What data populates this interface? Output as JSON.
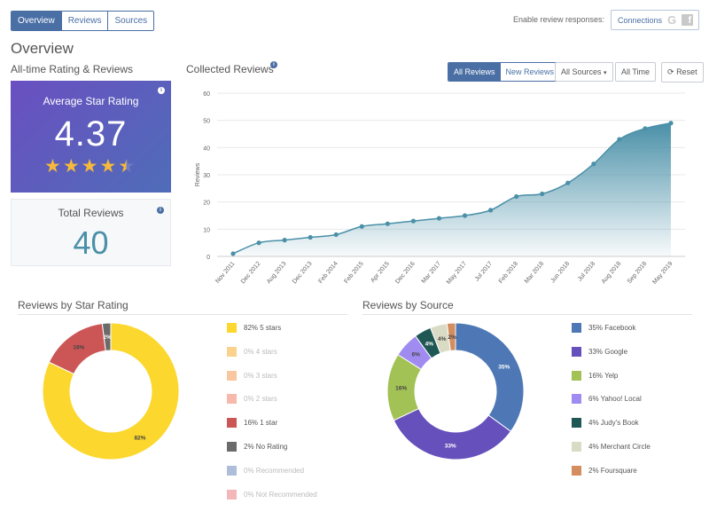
{
  "tabs": [
    {
      "label": "Overview",
      "active": true
    },
    {
      "label": "Reviews",
      "active": false
    },
    {
      "label": "Sources",
      "active": false
    }
  ],
  "connections": {
    "enable_label": "Enable review responses:",
    "button_label": "Connections",
    "google_glyph": "G",
    "facebook_glyph": "f"
  },
  "page_title": "Overview",
  "alltime_title": "All-time Rating & Reviews",
  "average": {
    "title": "Average Star Rating",
    "value": "4.37",
    "stars_full": 4,
    "star_partial": 0.37
  },
  "total": {
    "title": "Total Reviews",
    "value": "40"
  },
  "info_glyph": "i",
  "collected": {
    "title": "Collected Reviews",
    "filters": {
      "all_reviews": "All Reviews",
      "new_reviews": "New Reviews",
      "all_sources": "All Sources",
      "all_time": "All Time",
      "reset": "Reset"
    }
  },
  "chart_data": [
    {
      "type": "area",
      "title": "Collected Reviews",
      "ylabel": "Reviews",
      "ylim": [
        0,
        60
      ],
      "yticks": [
        0,
        10,
        20,
        30,
        40,
        50,
        60
      ],
      "x": [
        "Nov 2011",
        "Dec 2012",
        "Aug 2013",
        "Dec 2013",
        "Feb 2014",
        "Feb 2015",
        "Apr 2015",
        "Dec 2016",
        "Mar 2017",
        "May 2017",
        "Jul 2017",
        "Feb 2018",
        "Mar 2018",
        "Jun 2018",
        "Jul 2018",
        "Aug 2018",
        "Sep 2018",
        "May 2019"
      ],
      "values": [
        1,
        5,
        6,
        7,
        8,
        11,
        12,
        13,
        14,
        15,
        17,
        22,
        23,
        27,
        34,
        43,
        47,
        49
      ],
      "color": "#4a90a8",
      "grid": true
    },
    {
      "type": "pie",
      "title": "Reviews by Star Rating",
      "slices": [
        {
          "label": "5 stars",
          "pct": 82,
          "color": "#fcd72d"
        },
        {
          "label": "4 stars",
          "pct": 0,
          "color": "#fbd18e"
        },
        {
          "label": "3 stars",
          "pct": 0,
          "color": "#f8c7a0"
        },
        {
          "label": "2 stars",
          "pct": 0,
          "color": "#f6b9ab"
        },
        {
          "label": "1 star",
          "pct": 16,
          "color": "#cc5555"
        },
        {
          "label": "No Rating",
          "pct": 2,
          "color": "#6b6b6b"
        },
        {
          "label": "Recommended",
          "pct": 0,
          "color": "#aebdda"
        },
        {
          "label": "Not Recommended",
          "pct": 0,
          "color": "#f4b7b9"
        }
      ]
    },
    {
      "type": "pie",
      "title": "Reviews by Source",
      "slices": [
        {
          "label": "Facebook",
          "pct": 35,
          "color": "#4e78b5"
        },
        {
          "label": "Google",
          "pct": 33,
          "color": "#6650bb"
        },
        {
          "label": "Yelp",
          "pct": 16,
          "color": "#a2c256"
        },
        {
          "label": "Yahoo! Local",
          "pct": 6,
          "color": "#a08cf0"
        },
        {
          "label": "Judy's Book",
          "pct": 4,
          "color": "#1f5754"
        },
        {
          "label": "Merchant Circle",
          "pct": 4,
          "color": "#d9dbc4"
        },
        {
          "label": "Foursquare",
          "pct": 2,
          "color": "#d38d5f"
        }
      ]
    }
  ]
}
